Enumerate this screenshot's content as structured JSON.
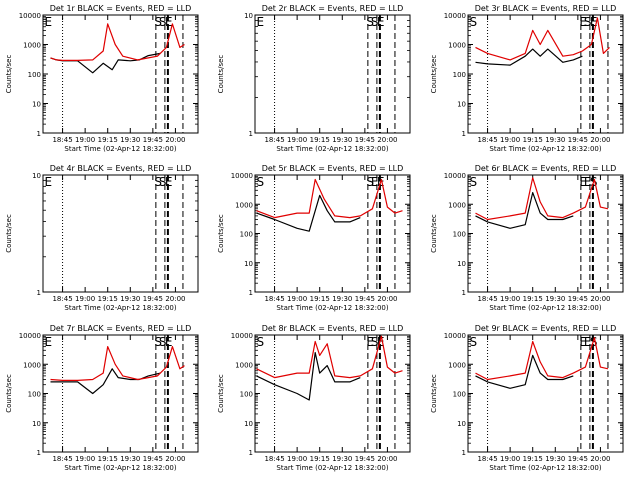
{
  "colors": {
    "background": "#ffffff",
    "events": "#000000",
    "lld": "#e00000",
    "axis": "#000000"
  },
  "xlabel": "Start Time (02-Apr-12 18:32:00)",
  "ylabel": "Counts/sec",
  "chart_data": [
    {
      "type": "line",
      "title": "Det 1r BLACK = Events, RED = LLD",
      "yscale": "log",
      "ylim": [
        1,
        10000
      ],
      "yticks": [
        "1",
        "10",
        "100",
        "1000",
        "10000"
      ],
      "xticks": [
        "18:45",
        "19:00",
        "19:15",
        "19:30",
        "19:45",
        "20:00"
      ],
      "xlim": [
        "18:32",
        "20:15"
      ],
      "markers": [
        "E",
        "S",
        "S",
        "E"
      ],
      "series": [
        {
          "name": "BLACK = Events",
          "color": "#000000",
          "x": [
            "18:37",
            "18:41",
            "18:45",
            "18:55",
            "19:05",
            "19:12",
            "19:18",
            "19:22",
            "19:30",
            "19:36",
            "19:42",
            "19:50"
          ],
          "values": [
            350,
            300,
            280,
            280,
            110,
            230,
            140,
            300,
            280,
            300,
            420,
            500
          ]
        },
        {
          "name": "RED = LLD",
          "color": "#e00000",
          "x": [
            "18:37",
            "18:41",
            "18:45",
            "18:55",
            "19:05",
            "19:12",
            "19:15",
            "19:20",
            "19:25",
            "19:35",
            "19:42",
            "19:48",
            "19:54",
            "19:58",
            "20:03",
            "20:06"
          ],
          "values": [
            350,
            300,
            290,
            290,
            300,
            600,
            5000,
            1000,
            400,
            300,
            350,
            400,
            800,
            5000,
            800,
            1000
          ]
        }
      ]
    },
    {
      "type": "line",
      "title": "Det 2r BLACK = Events, RED = LLD",
      "yscale": "log",
      "ylim": [
        1,
        10
      ],
      "yticks": [
        "1",
        "10"
      ],
      "xticks": [
        "18:45",
        "19:00",
        "19:15",
        "19:30",
        "19:45",
        "20:00"
      ],
      "xlim": [
        "18:32",
        "20:15"
      ],
      "markers": [
        "E",
        "S",
        "S",
        "E"
      ],
      "series": []
    },
    {
      "type": "line",
      "title": "Det 3r BLACK = Events, RED = LLD",
      "yscale": "log",
      "ylim": [
        1,
        10000
      ],
      "yticks": [
        "1",
        "10",
        "100",
        "1000",
        "10000"
      ],
      "xticks": [
        "18:45",
        "19:00",
        "19:15",
        "19:30",
        "19:45",
        "20:00"
      ],
      "xlim": [
        "18:32",
        "20:15"
      ],
      "markers": [
        "S",
        "E",
        "S",
        "E"
      ],
      "series": [
        {
          "name": "BLACK = Events",
          "color": "#000000",
          "x": [
            "18:37",
            "18:45",
            "19:00",
            "19:10",
            "19:15",
            "19:20",
            "19:25",
            "19:35",
            "19:42",
            "19:48"
          ],
          "values": [
            250,
            220,
            200,
            400,
            700,
            400,
            700,
            250,
            300,
            400
          ]
        },
        {
          "name": "RED = LLD",
          "color": "#e00000",
          "x": [
            "18:37",
            "18:45",
            "19:00",
            "19:10",
            "19:15",
            "19:20",
            "19:25",
            "19:35",
            "19:42",
            "19:48",
            "19:54",
            "19:58",
            "20:02",
            "20:06"
          ],
          "values": [
            800,
            500,
            300,
            500,
            3000,
            1000,
            3000,
            400,
            450,
            600,
            1000,
            8000,
            500,
            800
          ]
        }
      ]
    },
    {
      "type": "line",
      "title": "Det 4r BLACK = Events, RED = LLD",
      "yscale": "log",
      "ylim": [
        1,
        10
      ],
      "yticks": [
        "1",
        "10"
      ],
      "xticks": [
        "18:45",
        "19:00",
        "19:15",
        "19:30",
        "19:45",
        "20:00"
      ],
      "xlim": [
        "18:32",
        "20:15"
      ],
      "markers": [
        "E",
        "S",
        "S",
        "E"
      ],
      "series": []
    },
    {
      "type": "line",
      "title": "Det 5r BLACK = Events, RED = LLD",
      "yscale": "log",
      "ylim": [
        1,
        10000
      ],
      "yticks": [
        "1",
        "10",
        "100",
        "1000",
        "10000"
      ],
      "xticks": [
        "18:45",
        "19:00",
        "19:15",
        "19:30",
        "19:45",
        "20:00"
      ],
      "xlim": [
        "18:32",
        "20:15"
      ],
      "markers": [
        "S",
        "S",
        "E",
        "E"
      ],
      "series": [
        {
          "name": "BLACK = Events",
          "color": "#000000",
          "x": [
            "18:33",
            "18:45",
            "19:00",
            "19:08",
            "19:15",
            "19:20",
            "19:25",
            "19:35",
            "19:42"
          ],
          "values": [
            500,
            300,
            150,
            120,
            2000,
            600,
            250,
            250,
            350
          ]
        },
        {
          "name": "RED = LLD",
          "color": "#e00000",
          "x": [
            "18:33",
            "18:45",
            "19:00",
            "19:08",
            "19:12",
            "19:18",
            "19:25",
            "19:35",
            "19:42",
            "19:50",
            "19:56",
            "20:00",
            "20:05",
            "20:10"
          ],
          "values": [
            600,
            350,
            500,
            500,
            7000,
            1500,
            400,
            350,
            400,
            700,
            7000,
            800,
            500,
            600
          ]
        }
      ]
    },
    {
      "type": "line",
      "title": "Det 6r BLACK = Events, RED = LLD",
      "yscale": "log",
      "ylim": [
        1,
        10000
      ],
      "yticks": [
        "1",
        "10",
        "100",
        "1000",
        "10000"
      ],
      "xticks": [
        "18:45",
        "19:00",
        "19:15",
        "19:30",
        "19:45",
        "20:00"
      ],
      "xlim": [
        "18:32",
        "20:15"
      ],
      "markers": [
        "S",
        "E",
        "E",
        "S"
      ],
      "series": [
        {
          "name": "BLACK = Events",
          "color": "#000000",
          "x": [
            "18:37",
            "18:45",
            "19:00",
            "19:10",
            "19:15",
            "19:20",
            "19:25",
            "19:35",
            "19:42"
          ],
          "values": [
            400,
            250,
            150,
            200,
            2500,
            500,
            300,
            300,
            400
          ]
        },
        {
          "name": "RED = LLD",
          "color": "#e00000",
          "x": [
            "18:37",
            "18:45",
            "19:00",
            "19:10",
            "19:15",
            "19:20",
            "19:25",
            "19:35",
            "19:42",
            "19:50",
            "19:56",
            "20:00",
            "20:05"
          ],
          "values": [
            500,
            300,
            400,
            500,
            8000,
            1200,
            400,
            350,
            500,
            800,
            7000,
            800,
            700
          ]
        }
      ]
    },
    {
      "type": "line",
      "title": "Det 7r BLACK = Events, RED = LLD",
      "yscale": "log",
      "ylim": [
        1,
        10000
      ],
      "yticks": [
        "1",
        "10",
        "100",
        "1000",
        "10000"
      ],
      "xticks": [
        "18:45",
        "19:00",
        "19:15",
        "19:30",
        "19:45",
        "20:00"
      ],
      "xlim": [
        "18:32",
        "20:15"
      ],
      "markers": [
        "E",
        "S",
        "S",
        "E"
      ],
      "series": [
        {
          "name": "BLACK = Events",
          "color": "#000000",
          "x": [
            "18:37",
            "18:45",
            "18:55",
            "19:05",
            "19:12",
            "19:18",
            "19:22",
            "19:30",
            "19:36",
            "19:42",
            "19:50"
          ],
          "values": [
            250,
            250,
            250,
            100,
            200,
            700,
            350,
            300,
            300,
            400,
            500
          ]
        },
        {
          "name": "RED = LLD",
          "color": "#e00000",
          "x": [
            "18:37",
            "18:45",
            "18:55",
            "19:05",
            "19:12",
            "19:15",
            "19:20",
            "19:25",
            "19:35",
            "19:42",
            "19:48",
            "19:54",
            "19:58",
            "20:03",
            "20:06"
          ],
          "values": [
            300,
            280,
            280,
            300,
            500,
            4000,
            1000,
            400,
            300,
            350,
            400,
            800,
            4000,
            700,
            900
          ]
        }
      ]
    },
    {
      "type": "line",
      "title": "Det 8r BLACK = Events, RED = LLD",
      "yscale": "log",
      "ylim": [
        1,
        10000
      ],
      "yticks": [
        "1",
        "10",
        "100",
        "1000",
        "10000"
      ],
      "xticks": [
        "18:45",
        "19:00",
        "19:15",
        "19:30",
        "19:45",
        "20:00"
      ],
      "xlim": [
        "18:32",
        "20:15"
      ],
      "markers": [
        "S",
        "E",
        "S",
        "E"
      ],
      "series": [
        {
          "name": "BLACK = Events",
          "color": "#000000",
          "x": [
            "18:33",
            "18:45",
            "19:00",
            "19:08",
            "19:12",
            "19:15",
            "19:20",
            "19:25",
            "19:35",
            "19:42"
          ],
          "values": [
            400,
            200,
            100,
            60,
            2500,
            500,
            900,
            250,
            250,
            350
          ]
        },
        {
          "name": "RED = LLD",
          "color": "#e00000",
          "x": [
            "18:33",
            "18:45",
            "19:00",
            "19:08",
            "19:12",
            "19:15",
            "19:20",
            "19:25",
            "19:35",
            "19:42",
            "19:50",
            "19:56",
            "20:00",
            "20:05",
            "20:10"
          ],
          "values": [
            700,
            350,
            500,
            500,
            6000,
            2000,
            5000,
            400,
            350,
            400,
            700,
            9000,
            800,
            500,
            600
          ]
        }
      ]
    },
    {
      "type": "line",
      "title": "Det 9r BLACK = Events, RED = LLD",
      "yscale": "log",
      "ylim": [
        1,
        10000
      ],
      "yticks": [
        "1",
        "10",
        "100",
        "1000",
        "10000"
      ],
      "xticks": [
        "18:45",
        "19:00",
        "19:15",
        "19:30",
        "19:45",
        "20:00"
      ],
      "xlim": [
        "18:32",
        "20:15"
      ],
      "markers": [
        "S",
        "E",
        "E",
        "S"
      ],
      "series": [
        {
          "name": "BLACK = Events",
          "color": "#000000",
          "x": [
            "18:37",
            "18:45",
            "19:00",
            "19:10",
            "19:15",
            "19:20",
            "19:25",
            "19:35",
            "19:42"
          ],
          "values": [
            400,
            250,
            150,
            200,
            2000,
            500,
            300,
            300,
            400
          ]
        },
        {
          "name": "RED = LLD",
          "color": "#e00000",
          "x": [
            "18:37",
            "18:45",
            "19:00",
            "19:10",
            "19:15",
            "19:20",
            "19:25",
            "19:35",
            "19:42",
            "19:50",
            "19:56",
            "20:00",
            "20:05"
          ],
          "values": [
            500,
            300,
            400,
            500,
            6000,
            1200,
            400,
            350,
            500,
            800,
            8000,
            800,
            700
          ]
        }
      ]
    }
  ]
}
